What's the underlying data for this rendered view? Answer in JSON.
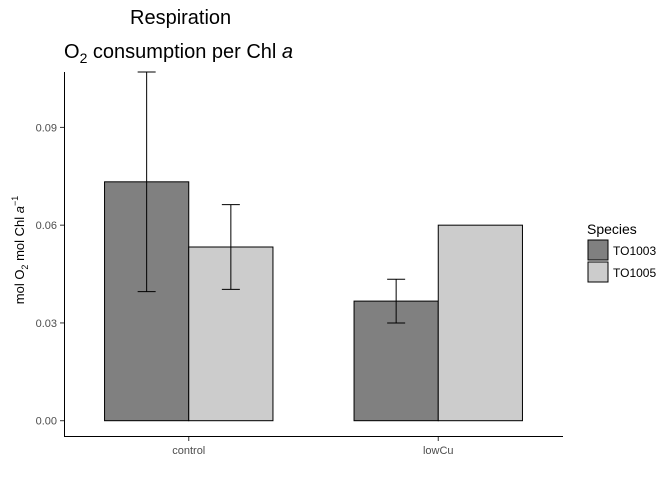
{
  "chart_data": {
    "type": "bar",
    "title": "Respiration",
    "subtitle": {
      "prefix": "O",
      "sub": "2",
      "middle": " consumption per Chl ",
      "italic": "a"
    },
    "ylabel": {
      "p1": "mol  O",
      "sub": "2",
      "p2": " mol Chl ",
      "italic": "a",
      "sup": "−1"
    },
    "xlabel": "",
    "categories": [
      "control",
      "lowCu"
    ],
    "ylim": [
      -0.005,
      0.107
    ],
    "yticks": [
      0.0,
      0.03,
      0.06,
      0.09
    ],
    "ytick_labels": [
      "0.00",
      "0.03",
      "0.06",
      "0.09"
    ],
    "grid": false,
    "legend": {
      "title": "Species",
      "placement": "right"
    },
    "series": [
      {
        "name": "TO1003",
        "color": "#808080",
        "values": [
          0.0733,
          0.0367
        ],
        "err": [
          0.0337,
          0.0067
        ]
      },
      {
        "name": "TO1005",
        "color": "#cccccc",
        "values": [
          0.0533,
          0.06
        ],
        "err": [
          0.013,
          null
        ]
      }
    ]
  }
}
